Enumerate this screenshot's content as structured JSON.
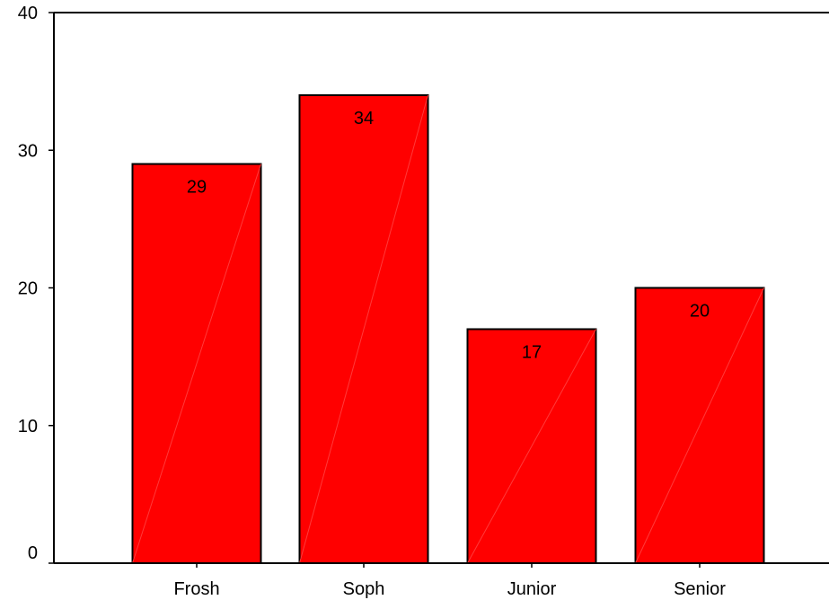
{
  "chart_data": {
    "type": "bar",
    "categories": [
      "Frosh",
      "Soph",
      "Junior",
      "Senior"
    ],
    "values": [
      29,
      34,
      17,
      20
    ],
    "data_labels": [
      "29",
      "34",
      "17",
      "20"
    ],
    "ylim": [
      0,
      40
    ],
    "yticks": [
      0,
      10,
      20,
      30,
      40
    ],
    "ytick_labels": [
      "0",
      "10",
      "20",
      "30",
      "40"
    ],
    "title": "",
    "xlabel": "",
    "ylabel": "",
    "grid": false,
    "legend": "none",
    "bar_color": "#ff0000",
    "bar_edge_color": "#000000"
  }
}
